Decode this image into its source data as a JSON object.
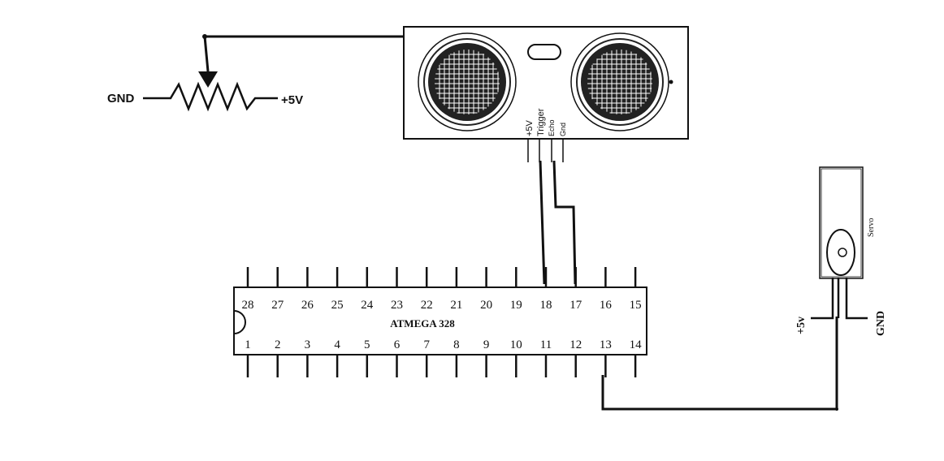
{
  "potentiometer": {
    "left_label": "GND",
    "right_label": "+5V"
  },
  "ultrasonic_sensor": {
    "pins": [
      "+5V",
      "Trigger",
      "Echo",
      "Gnd"
    ]
  },
  "microcontroller": {
    "name": "ATMEGA 328",
    "top_pins": [
      "28",
      "27",
      "26",
      "25",
      "24",
      "23",
      "22",
      "21",
      "20",
      "19",
      "18",
      "17",
      "16",
      "15"
    ],
    "bottom_pins": [
      "1",
      "2",
      "3",
      "4",
      "5",
      "6",
      "7",
      "8",
      "9",
      "10",
      "11",
      "12",
      "13",
      "14"
    ]
  },
  "servo": {
    "name": "Servo",
    "left_label": "+5v",
    "right_label": "GND"
  },
  "colors": {
    "ink": "#111111",
    "background": "#ffffff"
  }
}
